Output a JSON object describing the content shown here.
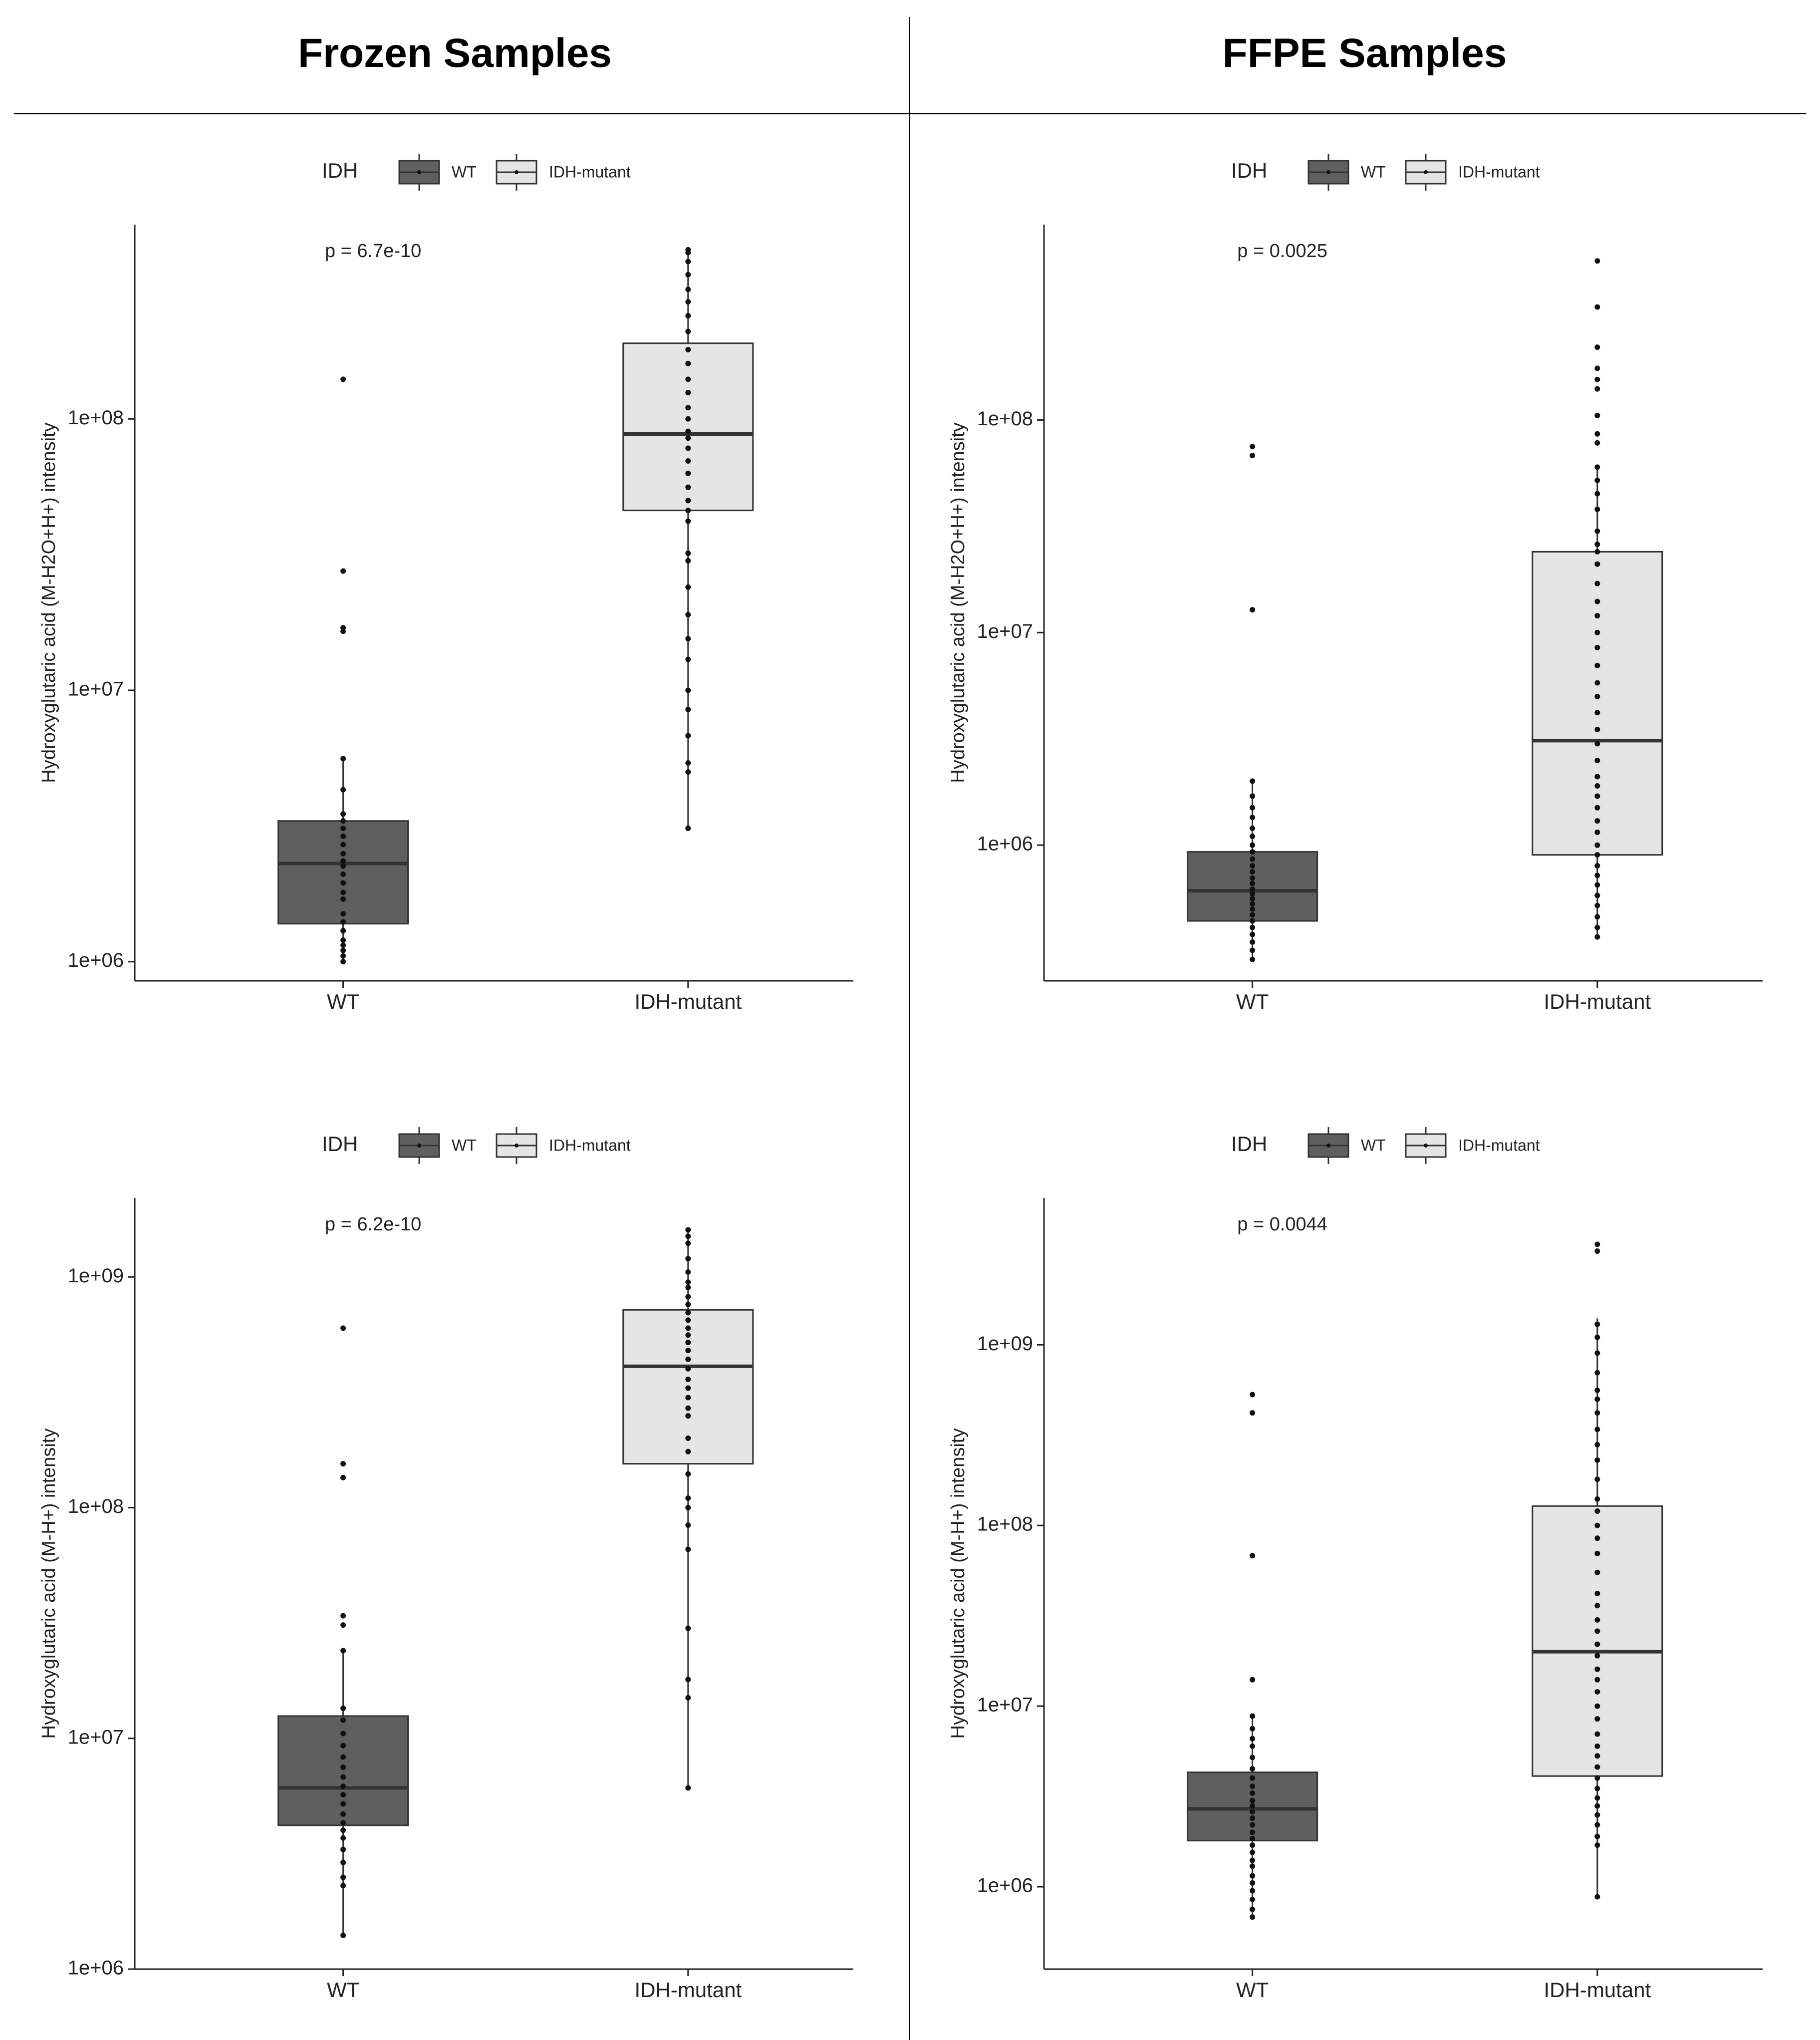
{
  "headers": {
    "left": "Frozen Samples",
    "right": "FFPE Samples"
  },
  "colors": {
    "wt_fill": "#5f5f5f",
    "mut_fill": "#e5e5e5",
    "box_stroke": "#333333",
    "point": "#111111"
  },
  "legend": {
    "title": "IDH",
    "items": [
      "WT",
      "IDH-mutant"
    ]
  },
  "chart_data": [
    {
      "type": "box",
      "title": "Frozen Samples",
      "ylabel": "Hydroxyglutaric acid (M-H2O+H+) intensity",
      "yscale": "log10",
      "ylim": [
        850000,
        520000000
      ],
      "ticks": [
        1000000,
        10000000,
        100000000
      ],
      "tick_labels": [
        "1e+06",
        "1e+07",
        "1e+08"
      ],
      "categories": [
        "WT",
        "IDH-mutant"
      ],
      "p_label": "p = 6.7e-10",
      "boxes": [
        {
          "group": "WT",
          "q1": 1380000,
          "median": 2300000,
          "q3": 3300000,
          "whisker_low": 1000000,
          "whisker_high": 5600000,
          "points": [
            1000000,
            1050000,
            1100000,
            1150000,
            1200000,
            1300000,
            1400000,
            1500000,
            1700000,
            1800000,
            1950000,
            2100000,
            2250000,
            2350000,
            2500000,
            2700000,
            2900000,
            3100000,
            3300000,
            3500000,
            4300000,
            5600000,
            16500000,
            17000000,
            27500000,
            140000000
          ]
        },
        {
          "group": "IDH-mutant",
          "q1": 46000000,
          "median": 88000000,
          "q3": 190000000,
          "whisker_low": 3100000,
          "whisker_high": 420000000,
          "points": [
            3100000,
            5000000,
            5400000,
            6800000,
            8500000,
            10000000,
            13000000,
            15500000,
            19000000,
            24000000,
            30000000,
            32000000,
            42000000,
            46000000,
            50000000,
            56000000,
            63000000,
            70000000,
            78000000,
            85000000,
            90000000,
            100000000,
            110000000,
            125000000,
            140000000,
            160000000,
            180000000,
            210000000,
            240000000,
            270000000,
            300000000,
            340000000,
            380000000,
            410000000,
            420000000
          ]
        }
      ]
    },
    {
      "type": "box",
      "title": "FFPE Samples",
      "ylabel": "Hydroxyglutaric acid (M-H2O+H+) intensity",
      "yscale": "log10",
      "ylim": [
        230000,
        830000000
      ],
      "ticks": [
        1000000,
        10000000,
        100000000
      ],
      "tick_labels": [
        "1e+06",
        "1e+07",
        "1e+08"
      ],
      "categories": [
        "WT",
        "IDH-mutant"
      ],
      "p_label": "p = 0.0025",
      "boxes": [
        {
          "group": "WT",
          "q1": 440000,
          "median": 610000,
          "q3": 930000,
          "whisker_low": 290000,
          "whisker_high": 2000000,
          "points": [
            290000,
            320000,
            350000,
            380000,
            410000,
            440000,
            470000,
            500000,
            530000,
            560000,
            590000,
            620000,
            660000,
            700000,
            750000,
            800000,
            860000,
            930000,
            1000000,
            1100000,
            1200000,
            1350000,
            1500000,
            1700000,
            2000000,
            12800000,
            68000000,
            75000000
          ]
        },
        {
          "group": "IDH-mutant",
          "q1": 900000,
          "median": 3100000,
          "q3": 24000000,
          "whisker_low": 370000,
          "whisker_high": 60000000,
          "points": [
            370000,
            410000,
            460000,
            520000,
            580000,
            650000,
            720000,
            800000,
            900000,
            1000000,
            1150000,
            1300000,
            1500000,
            1700000,
            1900000,
            2100000,
            2500000,
            3000000,
            3500000,
            4200000,
            5000000,
            5800000,
            7000000,
            8500000,
            10000000,
            12000000,
            14000000,
            17000000,
            21000000,
            24000000,
            26000000,
            30000000,
            38000000,
            45000000,
            52000000,
            60000000,
            78000000,
            86000000,
            105000000,
            140000000,
            155000000,
            175000000,
            220000000,
            340000000,
            560000000
          ]
        }
      ]
    },
    {
      "type": "box",
      "title": "Frozen Samples",
      "ylabel": "Hydroxyglutaric acid (M-H+) intensity",
      "yscale": "log10",
      "ylim": [
        1000000,
        2200000000
      ],
      "ticks": [
        1000000,
        10000000,
        100000000,
        1000000000
      ],
      "tick_labels": [
        "1e+06",
        "1e+07",
        "1e+08",
        "1e+09"
      ],
      "categories": [
        "WT",
        "IDH-mutant"
      ],
      "p_label": "p = 6.2e-10",
      "boxes": [
        {
          "group": "WT",
          "q1": 4200000,
          "median": 6100000,
          "q3": 12500000,
          "whisker_low": 1400000,
          "whisker_high": 24000000,
          "points": [
            1400000,
            2300000,
            2500000,
            2900000,
            3300000,
            3700000,
            4000000,
            4300000,
            4700000,
            5200000,
            5700000,
            6200000,
            6800000,
            7500000,
            8300000,
            9300000,
            10500000,
            12000000,
            13500000,
            24000000,
            31000000,
            34000000,
            135000000,
            155000000,
            600000000
          ]
        },
        {
          "group": "IDH-mutant",
          "q1": 155000000,
          "median": 410000000,
          "q3": 720000000,
          "whisker_low": 6100000,
          "whisker_high": 1600000000,
          "points": [
            6100000,
            15000000,
            18000000,
            30000000,
            66000000,
            84000000,
            100000000,
            110000000,
            140000000,
            175000000,
            200000000,
            250000000,
            270000000,
            300000000,
            330000000,
            360000000,
            400000000,
            440000000,
            480000000,
            520000000,
            560000000,
            600000000,
            650000000,
            700000000,
            760000000,
            820000000,
            900000000,
            950000000,
            1050000000,
            1200000000,
            1400000000,
            1500000000,
            1600000000
          ]
        }
      ]
    },
    {
      "type": "box",
      "title": "FFPE Samples",
      "ylabel": "Hydroxyglutaric acid (M-H+) intensity",
      "yscale": "log10",
      "ylim": [
        350000,
        6500000000
      ],
      "ticks": [
        1000000,
        10000000,
        100000000,
        1000000000
      ],
      "tick_labels": [
        "1e+06",
        "1e+07",
        "1e+08",
        "1e+09"
      ],
      "categories": [
        "WT",
        "IDH-mutant"
      ],
      "p_label": "p = 0.0044",
      "boxes": [
        {
          "group": "WT",
          "q1": 1800000,
          "median": 2700000,
          "q3": 4300000,
          "whisker_low": 680000,
          "whisker_high": 8800000,
          "points": [
            680000,
            750000,
            850000,
            950000,
            1050000,
            1150000,
            1300000,
            1400000,
            1550000,
            1700000,
            1850000,
            2000000,
            2200000,
            2400000,
            2600000,
            2800000,
            3000000,
            3300000,
            3600000,
            4000000,
            4500000,
            5200000,
            6000000,
            6600000,
            7500000,
            8800000,
            14000000,
            68000000,
            420000000,
            530000000
          ]
        },
        {
          "group": "IDH-mutant",
          "q1": 4100000,
          "median": 20000000,
          "q3": 128000000,
          "whisker_low": 880000,
          "whisker_high": 1400000000,
          "points": [
            880000,
            1700000,
            1900000,
            2200000,
            2500000,
            2800000,
            3100000,
            3500000,
            4000000,
            4600000,
            5300000,
            6000000,
            7000000,
            8500000,
            10000000,
            12000000,
            14000000,
            16000000,
            19000000,
            22000000,
            26000000,
            30000000,
            36000000,
            42000000,
            55000000,
            70000000,
            85000000,
            100000000,
            120000000,
            140000000,
            180000000,
            230000000,
            280000000,
            340000000,
            420000000,
            500000000,
            560000000,
            700000000,
            900000000,
            1100000000,
            1300000000,
            3300000000,
            3600000000
          ]
        }
      ]
    }
  ]
}
